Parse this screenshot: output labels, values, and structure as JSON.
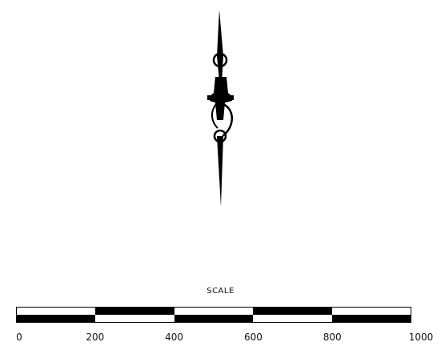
{
  "scale": {
    "title": "SCALE",
    "labels": [
      "0",
      "200",
      "400",
      "600",
      "800",
      "1000"
    ],
    "segments": [
      {
        "top": "light",
        "bottom": "dark"
      },
      {
        "top": "dark",
        "bottom": "light"
      },
      {
        "top": "light",
        "bottom": "dark"
      },
      {
        "top": "dark",
        "bottom": "light"
      },
      {
        "top": "light",
        "bottom": "dark"
      }
    ]
  },
  "north_arrow": {
    "icon": "north-arrow-icon"
  },
  "colors": {
    "ink": "#000000",
    "paper": "#ffffff"
  }
}
